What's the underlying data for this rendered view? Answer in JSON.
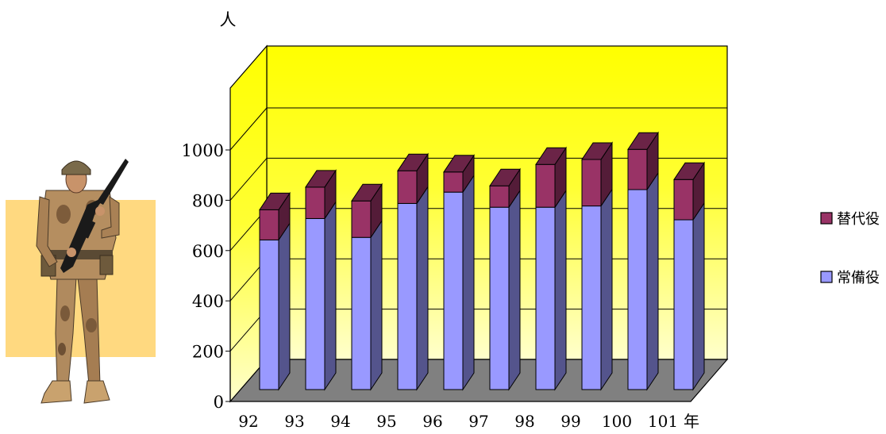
{
  "chart_data": {
    "type": "bar",
    "stacked": true,
    "three_d": true,
    "categories": [
      "92",
      "93",
      "94",
      "95",
      "96",
      "97",
      "98",
      "99",
      "100",
      "101"
    ],
    "x_unit": "年",
    "ylabel": "人",
    "ylim": [
      0,
      1000
    ],
    "yticks": [
      "0",
      "200",
      "400",
      "600",
      "800",
      "1000"
    ],
    "grid": true,
    "legend_position": "right",
    "series": [
      {
        "name": "常備役",
        "color": "#9999ff",
        "values": [
          595,
          680,
          605,
          740,
          785,
          725,
          725,
          730,
          795,
          675
        ]
      },
      {
        "name": "替代役",
        "color": "#993366",
        "values": [
          120,
          125,
          145,
          130,
          80,
          85,
          170,
          185,
          160,
          160
        ]
      }
    ],
    "legend": [
      "替代役",
      "常備役"
    ],
    "colors": {
      "back_wall": "#ffff00",
      "side_wall": "#ffff00",
      "floor": "#808080"
    }
  },
  "illustration": {
    "icon": "soldier-icon"
  }
}
